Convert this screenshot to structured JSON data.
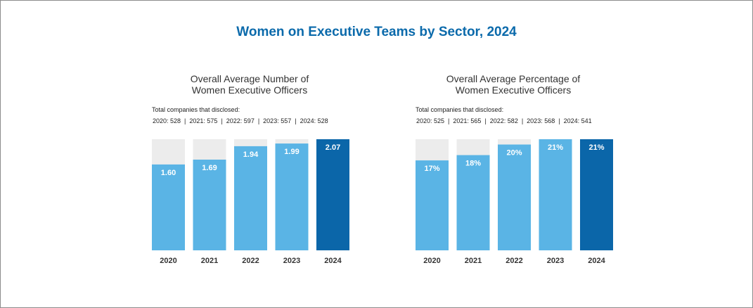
{
  "title": "Women on Executive Teams by Sector, 2024",
  "colors": {
    "title": "#0b6aab",
    "bar": "#5ab4e5",
    "bar_highlight": "#0b66a9",
    "track": "#ececec"
  },
  "chart_data": [
    {
      "type": "bar",
      "title_lines": [
        "Overall Average Number of",
        "Women Executive Officers"
      ],
      "disclosure_label": "Total companies that disclosed:",
      "disclosures": [
        "2020: 528",
        "2021: 575",
        "2022: 597",
        "2023: 557",
        "2024: 528"
      ],
      "categories": [
        "2020",
        "2021",
        "2022",
        "2023",
        "2024"
      ],
      "values": [
        1.6,
        1.69,
        1.94,
        1.99,
        2.07
      ],
      "value_labels": [
        "1.60",
        "1.69",
        "1.94",
        "1.99",
        "2.07"
      ],
      "ylim": [
        0,
        2.07
      ],
      "highlight_index": 4
    },
    {
      "type": "bar",
      "title_lines": [
        "Overall Average Percentage of",
        "Women Executive Officers"
      ],
      "disclosure_label": "Total companies that disclosed:",
      "disclosures": [
        "2020: 525",
        "2021: 565",
        "2022: 582",
        "2023: 568",
        "2024: 541"
      ],
      "categories": [
        "2020",
        "2021",
        "2022",
        "2023",
        "2024"
      ],
      "values": [
        17,
        18,
        20,
        21,
        21
      ],
      "value_labels": [
        "17%",
        "18%",
        "20%",
        "21%",
        "21%"
      ],
      "ylim": [
        0,
        21
      ],
      "highlight_index": 4
    }
  ]
}
